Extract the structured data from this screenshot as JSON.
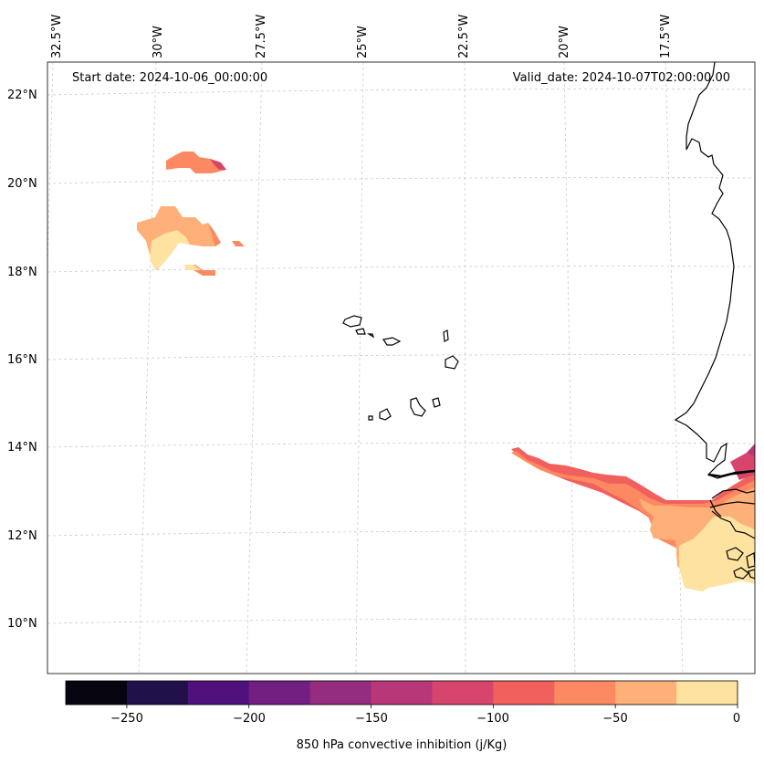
{
  "map": {
    "start_date_label": "Start date: 2024-10-06_00:00:00",
    "valid_date_label": "Valid_date: 2024-10-07T02:00:00.00",
    "lon_labels": [
      "32.5°W",
      "30°W",
      "27.5°W",
      "25°W",
      "22.5°W",
      "20°W",
      "17.5°W"
    ],
    "lat_labels": [
      "22°N",
      "20°N",
      "18°N",
      "16°N",
      "14°N",
      "12°N",
      "10°N"
    ],
    "colorbar": {
      "label": "850 hPa convective inhibition (j/Kg)",
      "ticks": [
        "−250",
        "−200",
        "−150",
        "−100",
        "−50",
        "0"
      ],
      "levels": [
        -275,
        -250,
        -225,
        -200,
        -175,
        -150,
        -125,
        -100,
        -75,
        -50,
        -25,
        0
      ],
      "colors": [
        "#05040f",
        "#20114b",
        "#4f117b",
        "#721f81",
        "#952c80",
        "#b73779",
        "#d8456c",
        "#f1605d",
        "#fc8961",
        "#feb078",
        "#fde2a0"
      ]
    },
    "colors": {
      "c_minus_75_to_minus_50": "#fc8961",
      "c_minus_50_to_minus_25": "#feb078",
      "c_minus_25_to_0": "#fde2a0",
      "c_minus_100_to_minus_75": "#f1605d",
      "c_minus_125_to_minus_100": "#d8456c",
      "c_minus_150_to_minus_125": "#b73779"
    }
  }
}
